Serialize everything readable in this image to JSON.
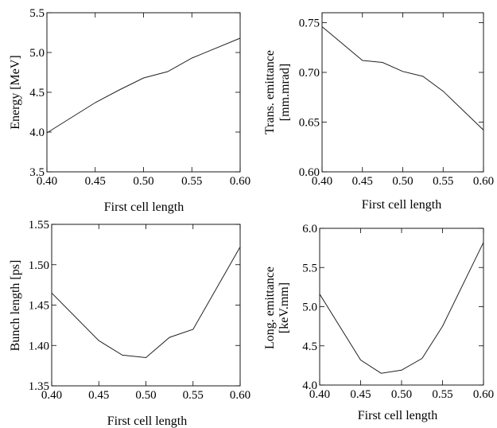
{
  "chart_data": [
    {
      "type": "line",
      "title": "",
      "xlabel": "First cell length",
      "ylabel": "Energy [MeV]",
      "xlim": [
        0.4,
        0.6
      ],
      "ylim": [
        3.5,
        5.5
      ],
      "x_ticks": [
        "0.40",
        "0.45",
        "0.50",
        "0.55",
        "0.60"
      ],
      "y_ticks": [
        "3.5",
        "4.0",
        "4.5",
        "5.0",
        "5.5"
      ],
      "grid": false,
      "legend": "none",
      "series": [
        {
          "x": [
            0.4,
            0.45,
            0.475,
            0.5,
            0.525,
            0.55,
            0.6
          ],
          "y": [
            3.99,
            4.37,
            4.53,
            4.68,
            4.76,
            4.93,
            5.18
          ]
        }
      ]
    },
    {
      "type": "line",
      "title": "",
      "xlabel": "First cell length",
      "ylabel": "Trans. emittance [mm.mrad]",
      "ylabel_lines": [
        "Trans. emittance",
        "[mm.mrad]"
      ],
      "xlim": [
        0.4,
        0.6
      ],
      "ylim": [
        0.6,
        0.76
      ],
      "x_ticks": [
        "0.40",
        "0.45",
        "0.50",
        "0.55",
        "0.60"
      ],
      "y_ticks": [
        "0.60",
        "0.65",
        "0.70",
        "0.75"
      ],
      "grid": false,
      "legend": "none",
      "series": [
        {
          "x": [
            0.4,
            0.45,
            0.475,
            0.5,
            0.525,
            0.55,
            0.6
          ],
          "y": [
            0.746,
            0.712,
            0.71,
            0.701,
            0.696,
            0.681,
            0.642
          ]
        }
      ]
    },
    {
      "type": "line",
      "title": "",
      "xlabel": "First cell length",
      "ylabel": "Bunch length [ps]",
      "xlim": [
        0.4,
        0.6
      ],
      "ylim": [
        1.35,
        1.55
      ],
      "x_ticks": [
        "0.40",
        "0.45",
        "0.50",
        "0.55",
        "0.60"
      ],
      "y_ticks": [
        "1.35",
        "1.40",
        "1.45",
        "1.50",
        "1.55"
      ],
      "grid": false,
      "legend": "none",
      "series": [
        {
          "x": [
            0.4,
            0.45,
            0.475,
            0.5,
            0.525,
            0.55,
            0.6
          ],
          "y": [
            1.465,
            1.406,
            1.388,
            1.385,
            1.41,
            1.42,
            1.522
          ]
        }
      ]
    },
    {
      "type": "line",
      "title": "",
      "xlabel": "First cell length",
      "ylabel": "Long. emittance [keV.mm]",
      "ylabel_lines": [
        "Long. emittance",
        "[keV.mm]"
      ],
      "xlim": [
        0.4,
        0.6
      ],
      "ylim": [
        4.0,
        6.0
      ],
      "x_ticks": [
        "0.40",
        "0.45",
        "0.50",
        "0.55",
        "0.60"
      ],
      "y_ticks": [
        "4.0",
        "4.5",
        "5.0",
        "5.5",
        "6.0"
      ],
      "grid": false,
      "legend": "none",
      "series": [
        {
          "x": [
            0.4,
            0.45,
            0.475,
            0.5,
            0.525,
            0.55,
            0.6
          ],
          "y": [
            5.16,
            4.32,
            4.15,
            4.19,
            4.34,
            4.75,
            5.82
          ]
        }
      ]
    }
  ]
}
